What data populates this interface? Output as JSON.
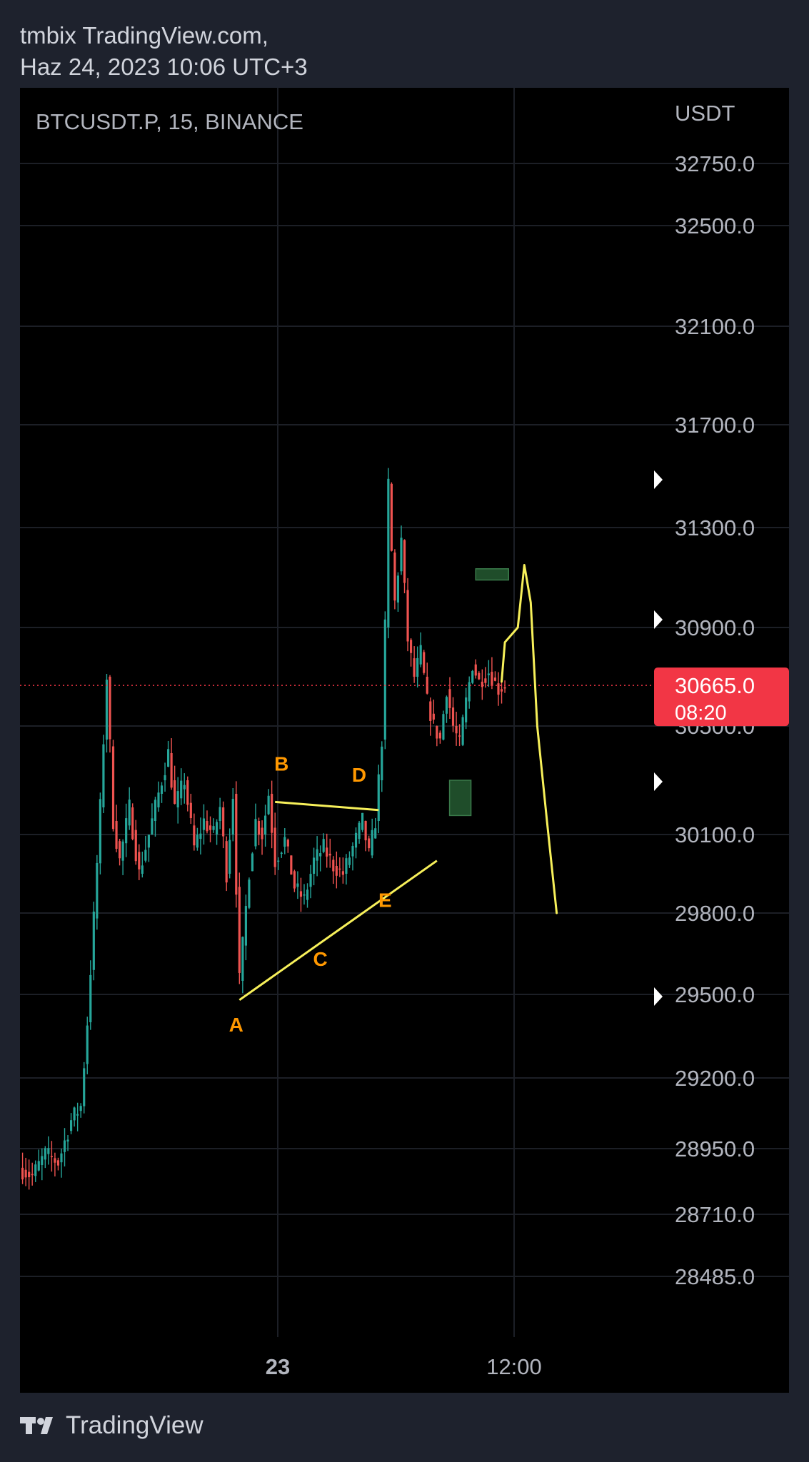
{
  "header": {
    "line1": "tmbix TradingView.com,",
    "line2": "Haz 24, 2023 10:06 UTC+3"
  },
  "footer": {
    "brand": "TradingView",
    "logo_icon": "tradingview-logo-icon"
  },
  "colors": {
    "background": "#000000",
    "frame": "#1e222d",
    "text": "#b2b5be",
    "bull": "#26a69a",
    "bear": "#ef5350",
    "drawing": "#f7f05a",
    "label": "#ff9800",
    "price_tag": "#f23645",
    "zone": "#1f4d2a"
  },
  "chart_data": {
    "type": "candlestick",
    "symbol": "BTCUSDT.P, 15, BINANCE",
    "currency": "USDT",
    "y_ticks": [
      "32750.0",
      "32500.0",
      "32100.0",
      "31700.0",
      "31300.0",
      "30900.0",
      "30500.0",
      "30100.0",
      "29800.0",
      "29500.0",
      "29200.0",
      "28950.0",
      "28710.0",
      "28485.0"
    ],
    "x_ticks": [
      "23",
      "12:00"
    ],
    "current_price": {
      "value": "30665.0",
      "countdown": "08:20"
    },
    "price_path": [
      [
        0,
        28880
      ],
      [
        4,
        28850
      ],
      [
        8,
        28930
      ],
      [
        12,
        28900
      ],
      [
        16,
        29050
      ],
      [
        19,
        29100
      ],
      [
        21,
        29400
      ],
      [
        23,
        29780
      ],
      [
        25,
        30200
      ],
      [
        27,
        30700
      ],
      [
        29,
        30150
      ],
      [
        31,
        30000
      ],
      [
        34,
        30200
      ],
      [
        37,
        29950
      ],
      [
        40,
        30100
      ],
      [
        43,
        30250
      ],
      [
        46,
        30400
      ],
      [
        48,
        30200
      ],
      [
        51,
        30300
      ],
      [
        54,
        30050
      ],
      [
        57,
        30150
      ],
      [
        60,
        30100
      ],
      [
        62,
        30200
      ],
      [
        64,
        29950
      ],
      [
        66,
        30250
      ],
      [
        68,
        29550
      ],
      [
        69,
        29680
      ],
      [
        71,
        29960
      ],
      [
        73,
        30150
      ],
      [
        75,
        30100
      ],
      [
        77,
        30250
      ],
      [
        79,
        30000
      ],
      [
        82,
        30080
      ],
      [
        85,
        29900
      ],
      [
        88,
        29850
      ],
      [
        91,
        30000
      ],
      [
        94,
        30050
      ],
      [
        97,
        29980
      ],
      [
        100,
        29950
      ],
      [
        103,
        30050
      ],
      [
        106,
        30150
      ],
      [
        108,
        30020
      ],
      [
        110,
        30150
      ],
      [
        112,
        30450
      ],
      [
        113,
        30900
      ],
      [
        114,
        31470
      ],
      [
        115,
        31200
      ],
      [
        116,
        31000
      ],
      [
        118,
        31250
      ],
      [
        120,
        30850
      ],
      [
        122,
        30700
      ],
      [
        124,
        30800
      ],
      [
        126,
        30600
      ],
      [
        128,
        30500
      ],
      [
        130,
        30450
      ],
      [
        132,
        30650
      ],
      [
        134,
        30500
      ],
      [
        136,
        30430
      ],
      [
        138,
        30600
      ],
      [
        140,
        30750
      ],
      [
        142,
        30680
      ],
      [
        145,
        30720
      ],
      [
        148,
        30650
      ],
      [
        150,
        30665
      ]
    ],
    "annotations": [
      {
        "label": "A",
        "value": 29490
      },
      {
        "label": "B",
        "value": 30230
      },
      {
        "label": "C",
        "value": 29710
      },
      {
        "label": "D",
        "value": 30190
      },
      {
        "label": "E",
        "value": 29960
      }
    ]
  }
}
